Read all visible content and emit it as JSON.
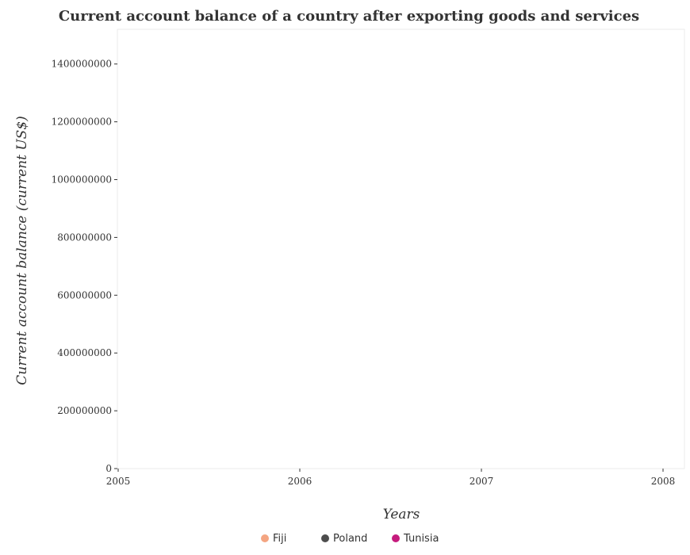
{
  "chart_data": {
    "type": "scatter",
    "title": "Current account balance of a country after exporting goods and services",
    "xlabel": "Years",
    "ylabel": "Current account balance (current US$)",
    "categories": [
      "2005",
      "2006",
      "2007",
      "2008"
    ],
    "y_ticks": [
      "0",
      "200000000",
      "400000000",
      "600000000",
      "800000000",
      "1000000000",
      "1200000000",
      "1400000000"
    ],
    "y_tick_values": [
      0,
      200000000,
      400000000,
      600000000,
      800000000,
      1000000000,
      1200000000,
      1400000000
    ],
    "ylim": [
      0,
      1520000000
    ],
    "grid": false,
    "legend_position": "bottom-center",
    "series": [
      {
        "name": "Fiji",
        "color": "#f4a582",
        "values": [
          null,
          null,
          null,
          null
        ]
      },
      {
        "name": "Poland",
        "color": "#4d4d4d",
        "values": [
          null,
          null,
          null,
          null
        ]
      },
      {
        "name": "Tunisia",
        "color": "#c51b7d",
        "values": [
          null,
          null,
          null,
          null
        ]
      }
    ]
  }
}
